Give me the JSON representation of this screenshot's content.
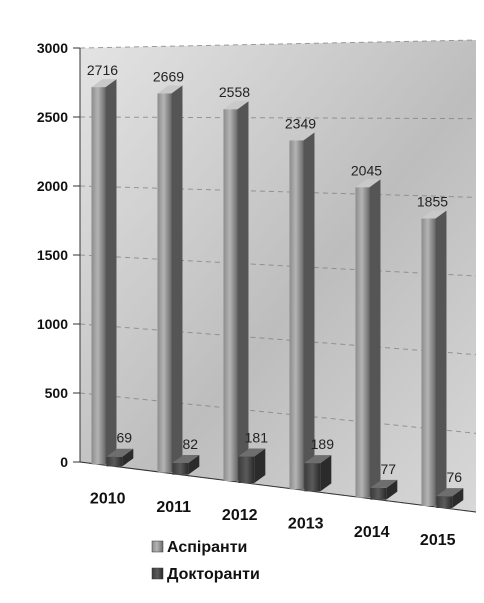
{
  "chart_data": {
    "type": "bar",
    "categories": [
      "2010",
      "2011",
      "2012",
      "2013",
      "2014",
      "2015"
    ],
    "series": [
      {
        "name": "Аспіранти",
        "values": [
          2716,
          2669,
          2558,
          2349,
          2045,
          1855
        ]
      },
      {
        "name": "Докторанти",
        "values": [
          69,
          82,
          181,
          189,
          77,
          76
        ]
      }
    ],
    "data_labels": {
      "Аспіранти": [
        "2716",
        "2669",
        "2558",
        "2349",
        "2045",
        "1855"
      ],
      "Докторанти": [
        "69",
        "82",
        "181",
        "189",
        "77",
        "76"
      ]
    },
    "yticks": [
      "0",
      "500",
      "1000",
      "1500",
      "2000",
      "2500",
      "3000"
    ],
    "ylim": [
      0,
      3000
    ],
    "grid": true,
    "legend_position": "bottom",
    "colors": {
      "aspiranty": "#9a9a9a",
      "doktoranty": "#4a4a4a"
    }
  }
}
